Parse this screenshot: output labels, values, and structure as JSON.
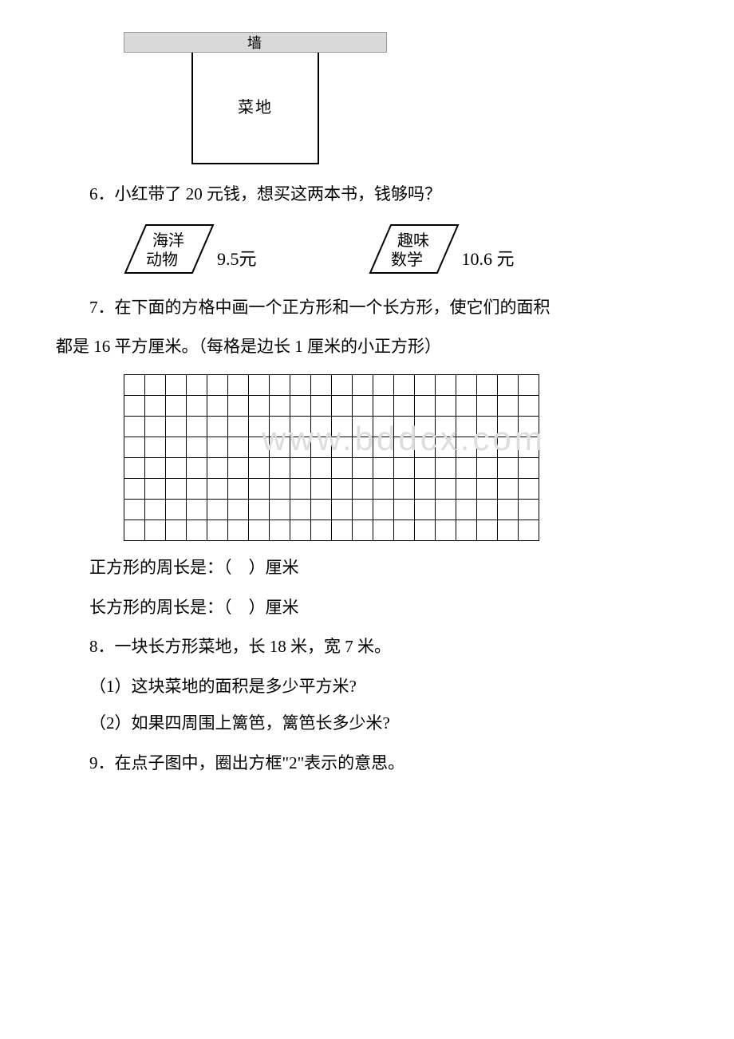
{
  "fig_wall": {
    "wall_label": "墙",
    "garden_label": "菜地"
  },
  "q6": {
    "text": "6．小红带了 20 元钱，想买这两本书，钱够吗？",
    "book1_line1": "海洋",
    "book1_line2": "动物",
    "book1_price": "9.5元",
    "book2_line1": "趣味",
    "book2_line2": "数学",
    "book2_price": "10.6 元"
  },
  "q7": {
    "text_a": "7．在下面的方格中画一个正方形和一个长方形，使它们的面积",
    "text_b": "都是 16 平方厘米。（每格是边长 1 厘米的小正方形）",
    "cols": 20,
    "rows": 8,
    "watermark": "www.bddcx.com",
    "ans1": "正方形的周长是：（　）厘米",
    "ans2": "长方形的周长是：（　）厘米"
  },
  "q8": {
    "text": "8．一块长方形菜地，长 18 米，宽 7 米。",
    "sub1": "（1）这块菜地的面积是多少平方米?",
    "sub2": "（2）如果四周围上篱笆，篱笆长多少米?"
  },
  "q9": {
    "text": "9．在点子图中，圈出方框\"2\"表示的意思。"
  }
}
